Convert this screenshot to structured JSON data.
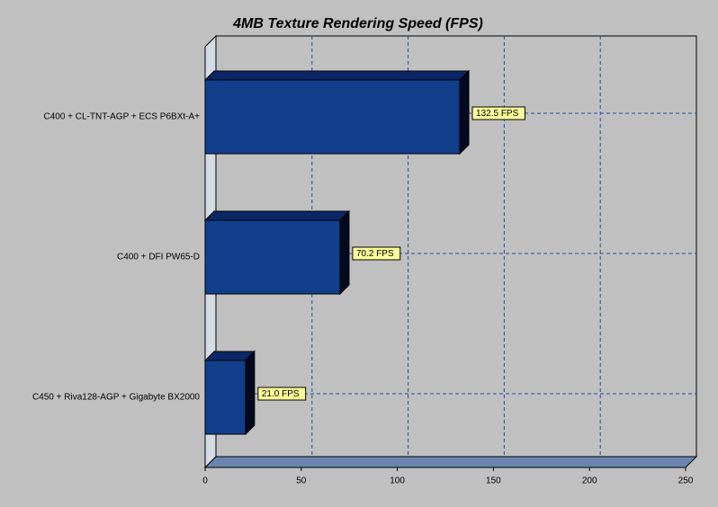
{
  "chart_data": {
    "type": "bar3d",
    "orientation": "horizontal",
    "title": "4MB Texture Rendering Speed (FPS)",
    "categories": [
      "C400 + CL-TNT-AGP + ECS P6BXt-A+",
      "C400 + DFI PW65-D",
      "C450 + Riva128-AGP + Gigabyte BX2000"
    ],
    "values": [
      132.5,
      70.2,
      21.0
    ],
    "value_labels": [
      "132.5 FPS",
      "70.2 FPS",
      "21.0 FPS"
    ],
    "color": "#123f8c",
    "xlim": [
      0,
      250
    ],
    "xticks": [
      0,
      50,
      100,
      150,
      200,
      250
    ],
    "grid": true
  }
}
